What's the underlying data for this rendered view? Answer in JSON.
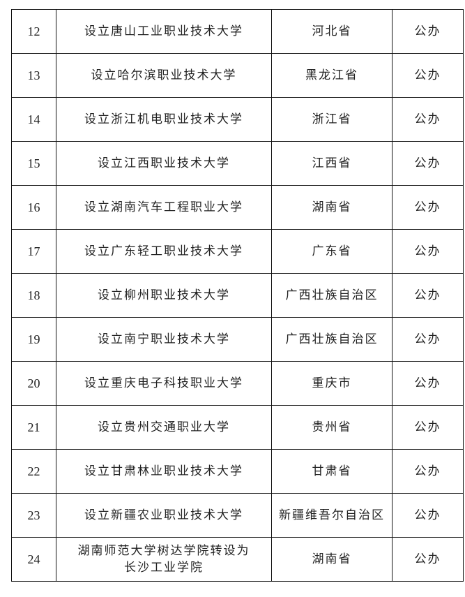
{
  "rows": [
    {
      "no": "12",
      "item": "设立唐山工业职业技术大学",
      "region": "河北省",
      "type": "公办"
    },
    {
      "no": "13",
      "item": "设立哈尔滨职业技术大学",
      "region": "黑龙江省",
      "type": "公办"
    },
    {
      "no": "14",
      "item": "设立浙江机电职业技术大学",
      "region": "浙江省",
      "type": "公办"
    },
    {
      "no": "15",
      "item": "设立江西职业技术大学",
      "region": "江西省",
      "type": "公办"
    },
    {
      "no": "16",
      "item": "设立湖南汽车工程职业大学",
      "region": "湖南省",
      "type": "公办"
    },
    {
      "no": "17",
      "item": "设立广东轻工职业技术大学",
      "region": "广东省",
      "type": "公办"
    },
    {
      "no": "18",
      "item": "设立柳州职业技术大学",
      "region": "广西壮族自治区",
      "type": "公办"
    },
    {
      "no": "19",
      "item": "设立南宁职业技术大学",
      "region": "广西壮族自治区",
      "type": "公办"
    },
    {
      "no": "20",
      "item": "设立重庆电子科技职业大学",
      "region": "重庆市",
      "type": "公办"
    },
    {
      "no": "21",
      "item": "设立贵州交通职业大学",
      "region": "贵州省",
      "type": "公办"
    },
    {
      "no": "22",
      "item": "设立甘肃林业职业技术大学",
      "region": "甘肃省",
      "type": "公办"
    },
    {
      "no": "23",
      "item": "设立新疆农业职业技术大学",
      "region": "新疆维吾尔自治区",
      "type": "公办"
    },
    {
      "no": "24",
      "item": "湖南师范大学树达学院转设为\n长沙工业学院",
      "region": "湖南省",
      "type": "公办"
    }
  ]
}
